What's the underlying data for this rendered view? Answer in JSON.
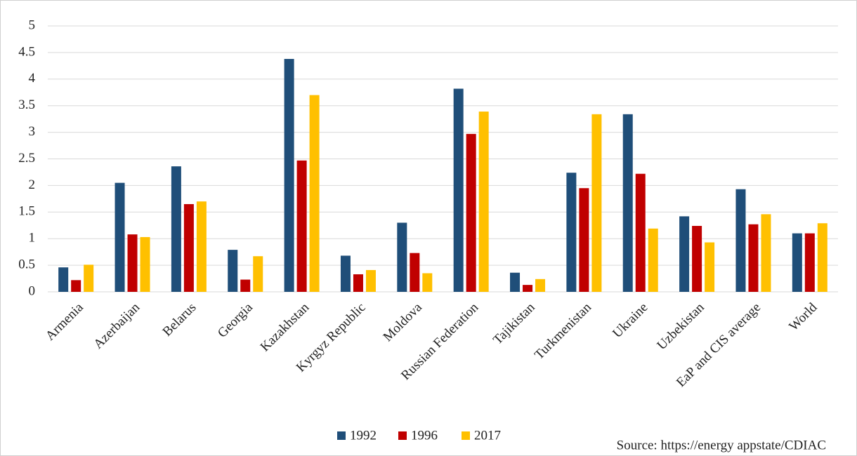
{
  "chart_data": {
    "type": "bar",
    "categories": [
      "Armenia",
      "Azerbaijan",
      "Belarus",
      "Georgia",
      "Kazakhstan",
      "Kyrgyz Republic",
      "Moldova",
      "Russian Federation",
      "Tajikistan",
      "Turkmenistan",
      "Ukraine",
      "Uzbekistan",
      "EaP and CIS average",
      "World"
    ],
    "series": [
      {
        "name": "1992",
        "color": "#1f4e79",
        "values": [
          0.46,
          2.05,
          2.36,
          0.79,
          4.38,
          0.68,
          1.3,
          3.82,
          0.36,
          2.24,
          3.34,
          1.42,
          1.93,
          1.1
        ]
      },
      {
        "name": "1996",
        "color": "#c00000",
        "values": [
          0.22,
          1.08,
          1.65,
          0.23,
          2.47,
          0.33,
          0.73,
          2.97,
          0.13,
          1.95,
          2.22,
          1.24,
          1.27,
          1.1
        ]
      },
      {
        "name": "2017",
        "color": "#ffc000",
        "values": [
          0.51,
          1.03,
          1.7,
          0.67,
          3.7,
          0.41,
          0.35,
          3.39,
          0.24,
          3.34,
          1.19,
          0.93,
          1.46,
          1.29
        ]
      }
    ],
    "ylim": [
      0,
      5
    ],
    "yticks": [
      0,
      0.5,
      1,
      1.5,
      2,
      2.5,
      3,
      3.5,
      4,
      4.5,
      5
    ],
    "grid": true,
    "legend": "bottom",
    "source": "Source: https://energy appstate/CDIAC"
  }
}
